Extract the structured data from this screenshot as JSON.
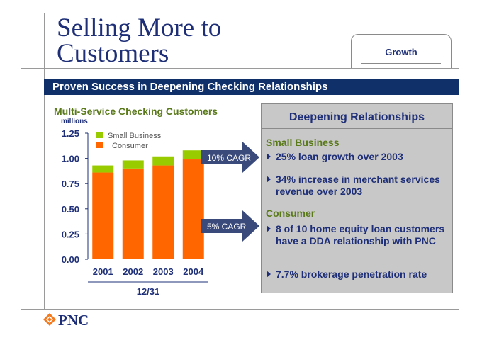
{
  "slide": {
    "title_line1": "Selling More to",
    "title_line2": "Customers",
    "tab_label": "Growth",
    "banner": "Proven Success in Deepening Checking Relationships"
  },
  "chart_data": {
    "type": "bar",
    "stacked": true,
    "title": "Multi-Service Checking Customers",
    "unit": "millions",
    "categories": [
      "2001",
      "2002",
      "2003",
      "2004"
    ],
    "xlabel": "12/31",
    "ylim": [
      0,
      1.25
    ],
    "yticks": [
      "0.00",
      "0.25",
      "0.50",
      "0.75",
      "1.00",
      "1.25"
    ],
    "series": [
      {
        "name": "Consumer",
        "color": "#ff6600",
        "values": [
          0.86,
          0.9,
          0.93,
          0.99
        ]
      },
      {
        "name": "Small Business",
        "color": "#99cc00",
        "values": [
          0.07,
          0.08,
          0.09,
          0.09
        ]
      }
    ],
    "legend_position": "top-left",
    "annotations": [
      "10% CAGR",
      "5% CAGR"
    ]
  },
  "panel": {
    "title": "Deepening Relationships",
    "sections": [
      {
        "heading": "Small Business",
        "bullets": [
          "25% loan growth over 2003",
          "34% increase in merchant services revenue over 2003"
        ]
      },
      {
        "heading": "Consumer",
        "bullets": [
          "8 of 10 home equity loan customers have a DDA relationship with PNC",
          "7.7% brokerage penetration rate"
        ]
      }
    ]
  },
  "footer": {
    "logo_text": "PNC",
    "logo_icon": "pnc-logo-icon"
  },
  "colors": {
    "navy": "#1e2f78",
    "banner": "#10306a",
    "green_heading": "#5a7a1a",
    "arrow": "#3a4a7a"
  }
}
